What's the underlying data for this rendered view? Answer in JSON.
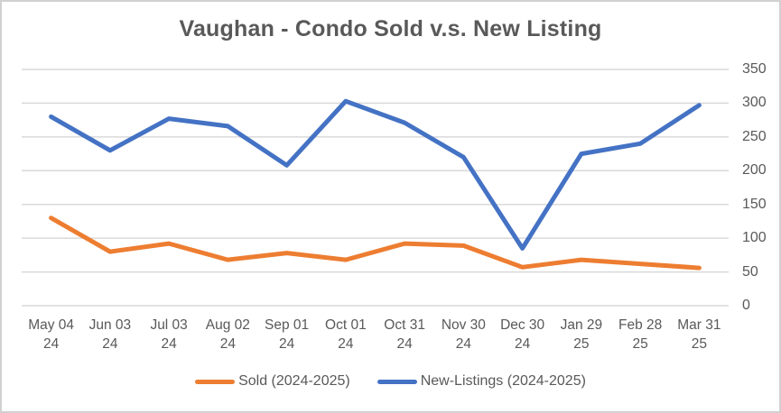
{
  "chart_data": {
    "type": "line",
    "title": "Vaughan - Condo Sold v.s. New Listing",
    "xlabel": "",
    "ylabel": "",
    "ylim": [
      0,
      350
    ],
    "y_ticks": [
      0,
      50,
      100,
      150,
      200,
      250,
      300,
      350
    ],
    "y_axis_side": "right",
    "grid": "horizontal",
    "legend_position": "bottom",
    "categories": [
      {
        "top": "May 04",
        "bottom": "24"
      },
      {
        "top": "Jun 03",
        "bottom": "24"
      },
      {
        "top": "Jul 03",
        "bottom": "24"
      },
      {
        "top": "Aug 02",
        "bottom": "24"
      },
      {
        "top": "Sep 01",
        "bottom": "24"
      },
      {
        "top": "Oct 01",
        "bottom": "24"
      },
      {
        "top": "Oct 31",
        "bottom": "24"
      },
      {
        "top": "Nov 30",
        "bottom": "24"
      },
      {
        "top": "Dec 30",
        "bottom": "24"
      },
      {
        "top": "Jan 29",
        "bottom": "25"
      },
      {
        "top": "Feb 28",
        "bottom": "25"
      },
      {
        "top": "Mar 31",
        "bottom": "25"
      }
    ],
    "series": [
      {
        "id": "sold",
        "name": "Sold (2024-2025)",
        "color": "#ED7D31",
        "values": [
          130,
          80,
          92,
          68,
          78,
          68,
          92,
          89,
          57,
          68,
          62,
          56
        ]
      },
      {
        "id": "new-listings",
        "name": "New-Listings (2024-2025)",
        "color": "#4472C4",
        "values": [
          280,
          230,
          277,
          266,
          208,
          303,
          271,
          220,
          85,
          225,
          240,
          297
        ]
      }
    ]
  },
  "style": {
    "grid_color": "#D9D9D9",
    "text_color": "#595959",
    "frame_border_color": "#D2D0D0",
    "background_color": "#FFFFFF"
  }
}
